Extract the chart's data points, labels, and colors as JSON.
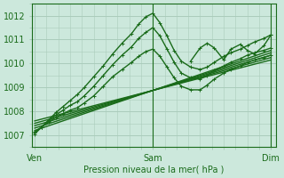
{
  "background_color": "#cce8dc",
  "grid_color": "#aaccbb",
  "line_color": "#1a6b1a",
  "title": "Pression niveau de la mer( hPa )",
  "xtick_labels": [
    "Ven",
    "Sam",
    "Dim"
  ],
  "xtick_positions": [
    0,
    0.5,
    1.0
  ],
  "ylim": [
    1006.5,
    1012.5
  ],
  "yticks": [
    1007,
    1008,
    1009,
    1010,
    1011,
    1012
  ],
  "series": [
    {
      "x": [
        0.0,
        0.03,
        0.06,
        0.09,
        0.12,
        0.15,
        0.18,
        0.21,
        0.25,
        0.29,
        0.33,
        0.37,
        0.41,
        0.44,
        0.47,
        0.5,
        0.53,
        0.56,
        0.59,
        0.62,
        0.66,
        0.7,
        0.73,
        0.76,
        0.8,
        0.83,
        0.87,
        0.9,
        0.93,
        0.97,
        1.0
      ],
      "y": [
        1007.05,
        1007.35,
        1007.65,
        1007.95,
        1008.2,
        1008.45,
        1008.7,
        1009.0,
        1009.45,
        1009.9,
        1010.4,
        1010.85,
        1011.25,
        1011.65,
        1011.95,
        1012.1,
        1011.7,
        1011.15,
        1010.55,
        1010.1,
        1009.85,
        1009.75,
        1009.85,
        1010.05,
        1010.3,
        1010.45,
        1010.6,
        1010.75,
        1010.9,
        1011.05,
        1011.2
      ],
      "marker": "+",
      "lw": 1.0
    },
    {
      "x": [
        0.0,
        0.03,
        0.06,
        0.09,
        0.12,
        0.15,
        0.18,
        0.21,
        0.25,
        0.29,
        0.33,
        0.37,
        0.41,
        0.44,
        0.47,
        0.5,
        0.53,
        0.56,
        0.59,
        0.62,
        0.66,
        0.7,
        0.73,
        0.76,
        0.8,
        0.83,
        0.87,
        0.9,
        0.93,
        0.97,
        1.0
      ],
      "y": [
        1007.1,
        1007.35,
        1007.6,
        1007.85,
        1008.05,
        1008.25,
        1008.4,
        1008.65,
        1009.05,
        1009.5,
        1009.95,
        1010.35,
        1010.7,
        1011.05,
        1011.3,
        1011.5,
        1011.15,
        1010.6,
        1010.05,
        1009.6,
        1009.4,
        1009.35,
        1009.5,
        1009.7,
        1009.9,
        1010.05,
        1010.2,
        1010.35,
        1010.45,
        1010.55,
        1010.65
      ],
      "marker": "+",
      "lw": 1.0
    },
    {
      "x": [
        0.0,
        0.03,
        0.06,
        0.09,
        0.12,
        0.15,
        0.18,
        0.21,
        0.25,
        0.29,
        0.33,
        0.37,
        0.41,
        0.44,
        0.47,
        0.5,
        0.53,
        0.56,
        0.59,
        0.62,
        0.66,
        0.7,
        0.73,
        0.76,
        0.8,
        0.83,
        0.87,
        0.9,
        0.93,
        0.97,
        1.0
      ],
      "y": [
        1007.15,
        1007.35,
        1007.55,
        1007.75,
        1007.9,
        1008.05,
        1008.15,
        1008.35,
        1008.65,
        1009.05,
        1009.45,
        1009.75,
        1010.05,
        1010.3,
        1010.5,
        1010.6,
        1010.3,
        1009.85,
        1009.4,
        1009.05,
        1008.9,
        1008.9,
        1009.1,
        1009.35,
        1009.6,
        1009.75,
        1009.9,
        1010.05,
        1010.15,
        1010.25,
        1010.35
      ],
      "marker": "+",
      "lw": 1.0
    },
    {
      "x": [
        0.0,
        1.0
      ],
      "y": [
        1007.2,
        1010.55
      ],
      "marker": null,
      "lw": 1.0
    },
    {
      "x": [
        0.0,
        1.0
      ],
      "y": [
        1007.3,
        1010.45
      ],
      "marker": null,
      "lw": 1.0
    },
    {
      "x": [
        0.0,
        1.0
      ],
      "y": [
        1007.4,
        1010.35
      ],
      "marker": null,
      "lw": 1.0
    },
    {
      "x": [
        0.0,
        1.0
      ],
      "y": [
        1007.5,
        1010.25
      ],
      "marker": null,
      "lw": 1.0
    },
    {
      "x": [
        0.0,
        1.0
      ],
      "y": [
        1007.6,
        1010.15
      ],
      "marker": null,
      "lw": 1.0
    },
    {
      "x": [
        0.66,
        0.7,
        0.73,
        0.76,
        0.8,
        0.83,
        0.87,
        0.9,
        0.93,
        0.97,
        1.0
      ],
      "y": [
        1010.1,
        1010.65,
        1010.85,
        1010.65,
        1010.15,
        1010.6,
        1010.8,
        1010.55,
        1010.4,
        1010.75,
        1011.2
      ],
      "marker": "+",
      "lw": 1.0
    }
  ],
  "vlines": [
    0.5,
    1.0
  ],
  "marker_size": 3,
  "title_fontsize": 7,
  "tick_fontsize": 7
}
